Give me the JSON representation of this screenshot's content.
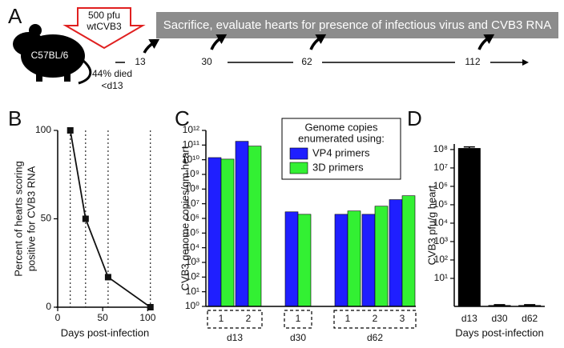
{
  "panel_a": {
    "panel": "A",
    "dose": "500 pfu",
    "virus": "wtCVB3",
    "strain": "C57BL/6",
    "mortality": "44% died",
    "mortality_time": "<d13",
    "banner": "Sacrifice, evaluate hearts for presence of infectious virus and CVB3 RNA",
    "timepoints": [
      "13",
      "30",
      "62",
      "112"
    ]
  },
  "chart_data": [
    {
      "type": "line",
      "panel": "B",
      "ylabel": [
        "Percent of hearts scoring",
        "positive for CVB3  RNA"
      ],
      "xlabel": "Days post-infection",
      "x": [
        14,
        31,
        56,
        103
      ],
      "values": [
        100,
        50,
        17,
        0
      ],
      "color": "#111111",
      "xlim": [
        0,
        105
      ],
      "xticks": [
        0,
        50,
        100
      ],
      "ylim": [
        0,
        100
      ],
      "yticks": [
        0,
        50,
        100
      ],
      "dotted_verticals": true
    },
    {
      "type": "grouped_bar",
      "panel": "C",
      "ylabel": "CVB3 genome copies/gm heart",
      "log_scale": true,
      "groups": [
        {
          "name": "d13",
          "categories": [
            "1",
            "2"
          ]
        },
        {
          "name": "d30",
          "categories": [
            "1"
          ]
        },
        {
          "name": "d62",
          "categories": [
            "1",
            "2",
            "3"
          ]
        }
      ],
      "legend_title": [
        "Genome copies",
        "enumerated using:"
      ],
      "legend": "top-right",
      "series": [
        {
          "name": "VP4 primers",
          "color": "#1f1fff",
          "values": [
            14000000000.0,
            180000000000.0,
            2800000.0,
            1900000.0,
            1900000.0,
            19000000.0
          ]
        },
        {
          "name": "3D primers",
          "color": "#33f033",
          "values": [
            11000000000.0,
            85000000000.0,
            1900000.0,
            3200000.0,
            6800000.0,
            35000000.0
          ]
        }
      ],
      "ylim": [
        1,
        1000000000000.0
      ],
      "yticks": [
        {
          "value": 1,
          "label": "10⁰"
        },
        {
          "value": 10.0,
          "label": "10¹"
        },
        {
          "value": 100.0,
          "label": "10²"
        },
        {
          "value": 1000.0,
          "label": "10³"
        },
        {
          "value": 10000.0,
          "label": "10⁴"
        },
        {
          "value": 100000.0,
          "label": "10⁵"
        },
        {
          "value": 1000000.0,
          "label": "10⁶"
        },
        {
          "value": 10000000.0,
          "label": "10⁷"
        },
        {
          "value": 100000000.0,
          "label": "10⁸"
        },
        {
          "value": 1000000000.0,
          "label": "10⁹"
        },
        {
          "value": 10000000000.0,
          "label": "10¹⁰"
        },
        {
          "value": 100000000000.0,
          "label": "10¹¹"
        },
        {
          "value": 1000000000000.0,
          "label": "10¹²"
        }
      ]
    },
    {
      "type": "bar",
      "panel": "D",
      "ylabel": "CVB3 pfu/g heart",
      "xlabel": "Days post-infection",
      "log_scale": true,
      "categories": [
        "d13",
        "d30",
        "d62"
      ],
      "values": [
        120000000.0,
        0.35,
        0.35
      ],
      "errors": [
        20000000.0,
        0.02,
        0.02
      ],
      "color": "#000000",
      "ylim": [
        0.3,
        200000000.0
      ],
      "yticks": [
        {
          "value": 10.0,
          "label": "10¹"
        },
        {
          "value": 100.0,
          "label": "10²"
        },
        {
          "value": 1000.0,
          "label": "10³"
        },
        {
          "value": 10000.0,
          "label": "10⁴"
        },
        {
          "value": 100000.0,
          "label": "10⁵"
        },
        {
          "value": 1000000.0,
          "label": "10⁶"
        },
        {
          "value": 10000000.0,
          "label": "10⁷"
        },
        {
          "value": 100000000.0,
          "label": "10⁸"
        }
      ]
    }
  ]
}
